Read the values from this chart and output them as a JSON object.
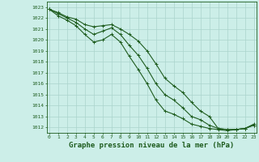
{
  "xlabel": "Graphe pression niveau de la mer (hPa)",
  "ylim": [
    1011.5,
    1023.5
  ],
  "xlim": [
    -0.3,
    23.3
  ],
  "bg_color": "#cceee8",
  "line_color": "#1e5c1e",
  "grid_color": "#aad4cc",
  "series": [
    [
      1022.8,
      1022.5,
      1022.1,
      1021.9,
      1021.4,
      1021.2,
      1021.3,
      1021.4,
      1021.0,
      1020.5,
      1019.9,
      1019.0,
      1017.8,
      1016.5,
      1015.8,
      1015.2,
      1014.3,
      1013.5,
      1013.0,
      1011.9,
      1011.8,
      1011.8,
      1011.9,
      1012.3
    ],
    [
      1022.8,
      1022.4,
      1022.0,
      1021.6,
      1021.0,
      1020.5,
      1020.8,
      1021.1,
      1020.5,
      1019.5,
      1018.6,
      1017.4,
      1016.0,
      1015.0,
      1014.5,
      1013.8,
      1013.0,
      1012.7,
      1012.2,
      1011.9,
      1011.8,
      1011.8,
      1011.9,
      1012.2
    ],
    [
      1022.8,
      1022.2,
      1021.8,
      1021.3,
      1020.5,
      1019.8,
      1020.0,
      1020.5,
      1019.8,
      1018.5,
      1017.3,
      1016.0,
      1014.5,
      1013.5,
      1013.2,
      1012.8,
      1012.3,
      1012.1,
      1011.9,
      1011.8,
      1011.7,
      1011.8,
      1011.9,
      1012.2
    ]
  ],
  "ytick_min": 1012,
  "ytick_max": 1023,
  "xtick_labels": [
    "0",
    "1",
    "2",
    "3",
    "4",
    "5",
    "6",
    "7",
    "8",
    "9",
    "10",
    "11",
    "12",
    "13",
    "14",
    "15",
    "16",
    "17",
    "18",
    "19",
    "20",
    "21",
    "22",
    "23"
  ],
  "marker": "+",
  "markersize": 3.5,
  "linewidth": 0.8,
  "tick_fontsize": 4.5,
  "xlabel_fontsize": 6.5
}
